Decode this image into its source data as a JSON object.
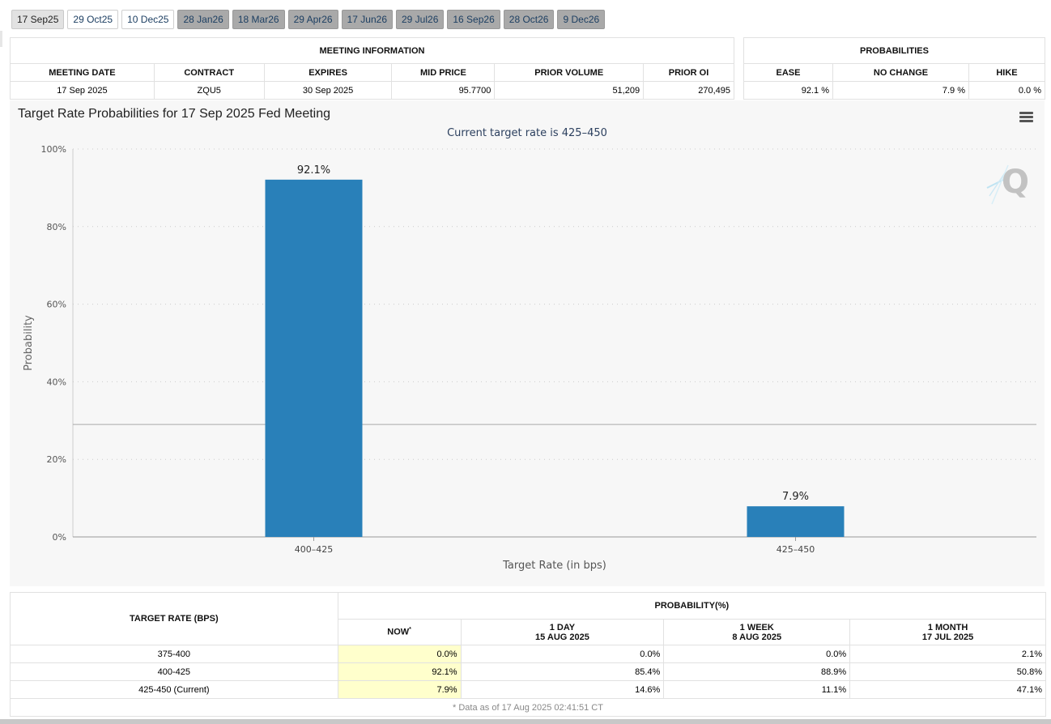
{
  "tabs": [
    {
      "label": "17 Sep25",
      "state": "active"
    },
    {
      "label": "29 Oct25",
      "state": "open"
    },
    {
      "label": "10 Dec25",
      "state": "open"
    },
    {
      "label": "28 Jan26",
      "state": "future"
    },
    {
      "label": "18 Mar26",
      "state": "future"
    },
    {
      "label": "29 Apr26",
      "state": "future"
    },
    {
      "label": "17 Jun26",
      "state": "future"
    },
    {
      "label": "29 Jul26",
      "state": "future"
    },
    {
      "label": "16 Sep26",
      "state": "future"
    },
    {
      "label": "28 Oct26",
      "state": "future"
    },
    {
      "label": "9 Dec26",
      "state": "future"
    }
  ],
  "meeting_info": {
    "section_title": "MEETING INFORMATION",
    "headers": [
      "MEETING DATE",
      "CONTRACT",
      "EXPIRES",
      "MID PRICE",
      "PRIOR VOLUME",
      "PRIOR OI"
    ],
    "row": [
      "17 Sep 2025",
      "ZQU5",
      "30 Sep 2025",
      "95.7700",
      "51,209",
      "270,495"
    ]
  },
  "probabilities": {
    "section_title": "PROBABILITIES",
    "headers": [
      "EASE",
      "NO CHANGE",
      "HIKE"
    ],
    "row": [
      "92.1 %",
      "7.9 %",
      "0.0 %"
    ]
  },
  "chart": {
    "menu_icon": "hamburger-menu-icon",
    "watermark_icon": "q-logo-icon",
    "colors": {
      "bar": "#2980b9",
      "grid": "#cccccc",
      "panel": "#f7f7f7"
    }
  },
  "chart_data": {
    "type": "bar",
    "title": "Target Rate Probabilities for 17 Sep 2025 Fed Meeting",
    "subtitle": "Current target rate is 425–450",
    "xlabel": "Target Rate (in bps)",
    "ylabel": "Probability",
    "categories": [
      "400–425",
      "425–450"
    ],
    "values": [
      92.1,
      7.9
    ],
    "data_labels": [
      "92.1%",
      "7.9%"
    ],
    "ylim": [
      0,
      100
    ],
    "yticks": [
      0,
      20,
      40,
      60,
      80,
      100
    ],
    "ytick_labels": [
      "0%",
      "20%",
      "40%",
      "60%",
      "80%",
      "100%"
    ],
    "reference_line": 29,
    "grid": true
  },
  "history": {
    "rate_header": "TARGET RATE (BPS)",
    "prob_header": "PROBABILITY(%)",
    "now_label": "NOW",
    "now_marker": "*",
    "columns": [
      {
        "line1": "1 DAY",
        "line2": "15 AUG 2025"
      },
      {
        "line1": "1 WEEK",
        "line2": "8 AUG 2025"
      },
      {
        "line1": "1 MONTH",
        "line2": "17 JUL 2025"
      }
    ],
    "rows": [
      {
        "rate": "375-400",
        "now": "0.0%",
        "values": [
          "0.0%",
          "0.0%",
          "2.1%"
        ]
      },
      {
        "rate": "400-425",
        "now": "92.1%",
        "values": [
          "85.4%",
          "88.9%",
          "50.8%"
        ]
      },
      {
        "rate": "425-450 (Current)",
        "now": "7.9%",
        "values": [
          "14.6%",
          "11.1%",
          "47.1%"
        ]
      }
    ],
    "footnote": "* Data as of 17 Aug 2025 02:41:51 CT"
  }
}
